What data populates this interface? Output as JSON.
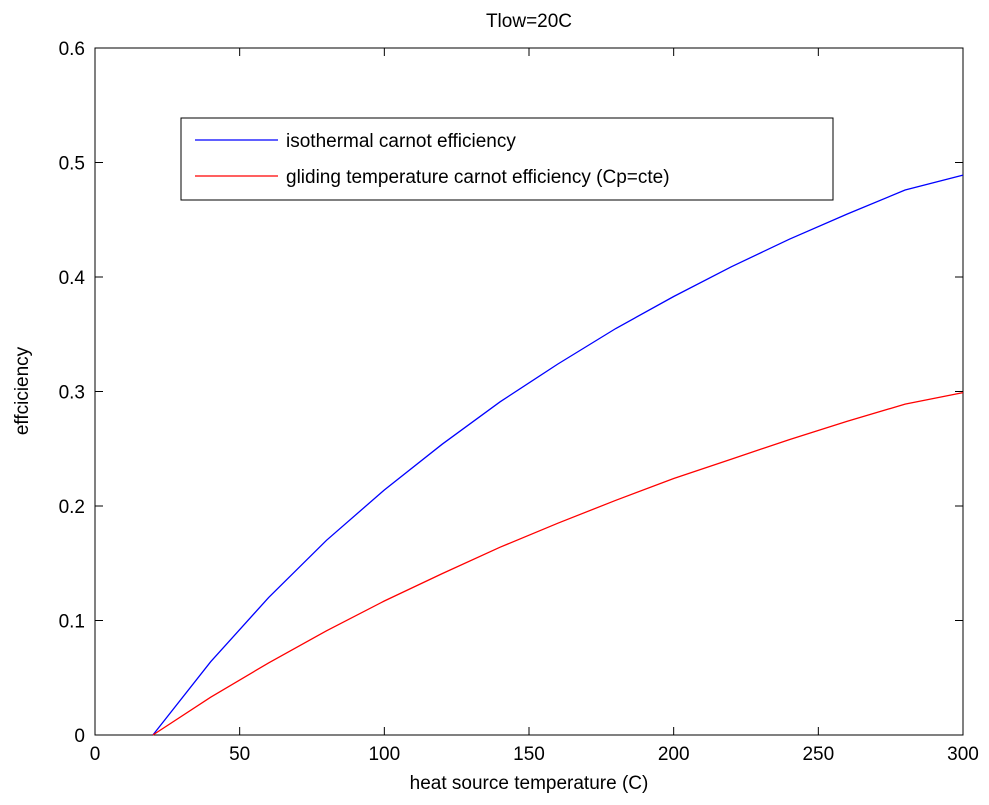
{
  "chart_data": {
    "type": "line",
    "title": "Tlow=20C",
    "xlabel": "heat source temperature (C)",
    "ylabel": "effciciency",
    "xlim": [
      0,
      300
    ],
    "ylim": [
      0,
      0.6
    ],
    "xticks": [
      0,
      50,
      100,
      150,
      200,
      250,
      300
    ],
    "yticks": [
      0,
      0.1,
      0.2,
      0.3,
      0.4,
      0.5,
      0.6
    ],
    "xtick_labels": [
      "0",
      "50",
      "100",
      "150",
      "200",
      "250",
      "300"
    ],
    "ytick_labels": [
      "0",
      "0.1",
      "0.2",
      "0.3",
      "0.4",
      "0.5",
      "0.6"
    ],
    "grid": false,
    "legend_position": "top",
    "x": [
      20,
      40,
      60,
      80,
      100,
      120,
      140,
      160,
      180,
      200,
      220,
      240,
      260,
      280,
      300
    ],
    "series": [
      {
        "name": "isothermal carnot efficiency",
        "color": "#0000ff",
        "values": [
          0.0,
          0.064,
          0.12,
          0.17,
          0.214,
          0.254,
          0.291,
          0.324,
          0.355,
          0.383,
          0.409,
          0.433,
          0.455,
          0.476,
          0.489
        ]
      },
      {
        "name": "gliding temperature carnot efficiency (Cp=cte)",
        "color": "#ff0000",
        "values": [
          0.0,
          0.033,
          0.063,
          0.091,
          0.117,
          0.141,
          0.164,
          0.185,
          0.205,
          0.224,
          0.241,
          0.258,
          0.274,
          0.289,
          0.299
        ]
      }
    ]
  }
}
